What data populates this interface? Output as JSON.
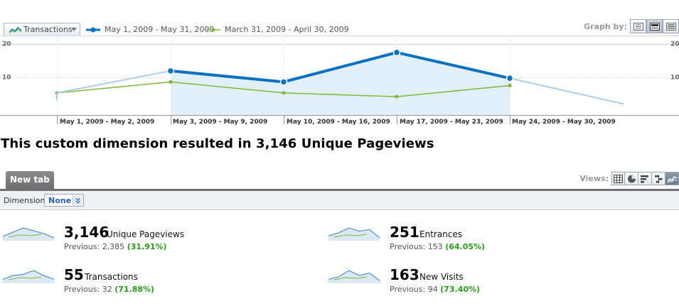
{
  "toolbar": {
    "metric_selector": "Transactions",
    "legend": [
      {
        "label": "May 1, 2009 - May 31, 2009",
        "color": "#0a70c0"
      },
      {
        "label": "March 31, 2009 - April 30, 2009",
        "color": "#7cb93a"
      }
    ],
    "graph_by_label": "Graph by:",
    "graph_by_options": [
      "day-icon",
      "week-icon",
      "month-icon"
    ],
    "graph_by_active": 1
  },
  "chart_data": {
    "type": "line",
    "x": [
      "",
      "May 1, 2009 - May 2, 2009",
      "May 3, 2009 - May 9, 2009",
      "May 10, 2009 - May 16, 2009",
      "May 17, 2009 - May 23, 2009",
      "May 24, 2009 - May 30, 2009",
      ""
    ],
    "tick_labels": [
      "May 1, 2009 - May 2, 2009",
      "May 3, 2009 - May 9, 2009",
      "May 10, 2009 - May 16, 2009",
      "May 17, 2009 - May 23, 2009",
      "May 24, 2009 - May 30, 2009"
    ],
    "series": [
      {
        "name": "May 1, 2009 - May 31, 2009",
        "values": [
          4,
          6,
          12,
          9,
          17,
          10,
          3
        ],
        "color": "#0a70c0",
        "highlight_start": 2,
        "highlight_end": 5
      },
      {
        "name": "March 31, 2009 - April 30, 2009",
        "values": [
          4,
          6,
          9,
          6,
          5,
          8,
          null
        ],
        "color": "#7cb93a"
      }
    ],
    "y_ticks": [
      "20",
      "10"
    ],
    "ylim": [
      0,
      25
    ],
    "grid": true
  },
  "headline": "This custom dimension resulted in 3,146 Unique Pageviews",
  "tabs": [
    {
      "label": "New tab"
    }
  ],
  "views": {
    "label": "Views:",
    "options": [
      "table-icon",
      "pie-icon",
      "bar-icon",
      "comparison-icon",
      "performance-icon"
    ],
    "active": 4
  },
  "dimension": {
    "label": "Dimension:",
    "value": "None"
  },
  "scorecards": [
    {
      "value": "3,146",
      "metric": "Unique Pageviews",
      "previous_label": "Previous: 2,385",
      "change": "(31.91%)",
      "spark": [
        2,
        5,
        8,
        6,
        4,
        1
      ]
    },
    {
      "value": "251",
      "metric": "Entrances",
      "previous_label": "Previous: 153",
      "change": "(64.05%)",
      "spark": [
        2,
        4,
        7,
        5,
        6,
        1
      ]
    },
    {
      "value": "55",
      "metric": "Transactions",
      "previous_label": "Previous: 32",
      "change": "(71.88%)",
      "spark": [
        2,
        5,
        6,
        9,
        5,
        2
      ]
    },
    {
      "value": "163",
      "metric": "New Visits",
      "previous_label": "Previous: 94",
      "change": "(73.40%)",
      "spark": [
        2,
        4,
        9,
        5,
        7,
        1
      ]
    }
  ]
}
